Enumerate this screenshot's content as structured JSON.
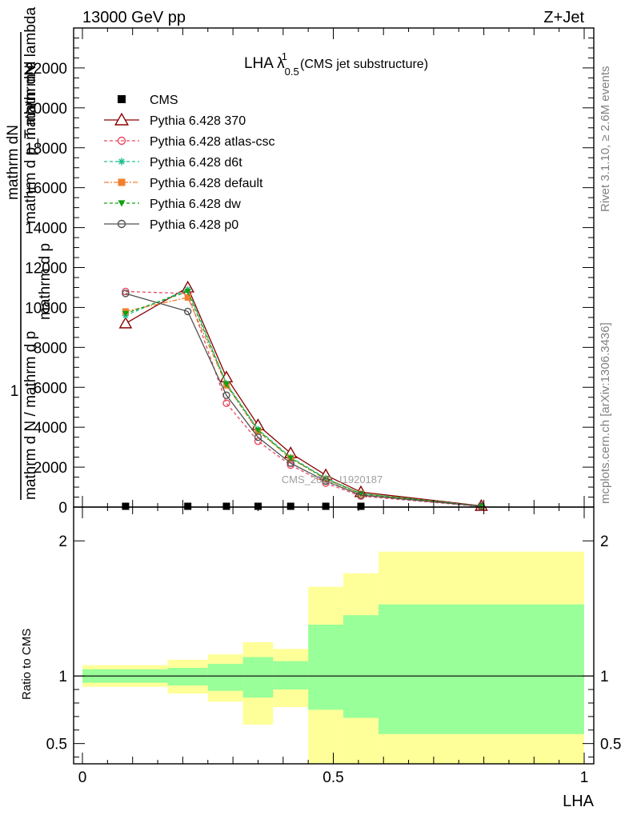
{
  "header": {
    "energy_label": "13000 GeV pp",
    "process_label": "Z+Jet"
  },
  "side_text": {
    "rivet": "Rivet 3.1.10, ≥ 2.6M events",
    "mcplots": "mcplots.cern.ch [arXiv:1306.3436]"
  },
  "watermark": "CMS_2021_I1920187",
  "chart_data": [
    {
      "type": "line",
      "title_main": "LHA λ",
      "title_sup": "1",
      "title_sub": "0.5",
      "title_rest": "(CMS jet substructure)",
      "ylabel_top": "1",
      "ylabel_lines": [
        "mathrm d N / mathrm d p",
        "mathrm d p",
        "mathrm dN"
      ],
      "ylabel_overlay_lines": [
        "mathrm dN",
        "mathrm d p_T mathrm d lambda"
      ],
      "ylim": [
        0,
        24000
      ],
      "yticks": [
        0,
        2000,
        4000,
        6000,
        8000,
        10000,
        12000,
        14000,
        16000,
        18000,
        20000,
        22000
      ],
      "ytick_labels": [
        "0",
        "2000",
        "4000",
        "6000",
        "8000",
        "10000",
        "12000",
        "14000",
        "16000",
        "18000",
        "20000",
        "22000"
      ],
      "x": [
        0.086,
        0.21,
        0.287,
        0.35,
        0.415,
        0.485,
        0.555,
        0.795
      ],
      "legend": [
        "CMS",
        "Pythia 6.428 370",
        "Pythia 6.428 atlas-csc",
        "Pythia 6.428 d6t",
        "Pythia 6.428 default",
        "Pythia 6.428 dw",
        "Pythia 6.428 p0"
      ],
      "series": [
        {
          "name": "CMS",
          "color": "#000000",
          "marker": "square",
          "values": [
            12,
            12,
            12,
            12,
            12,
            12,
            12,
            0
          ]
        },
        {
          "name": "Pythia 6.428 370",
          "color": "#8b0000",
          "marker": "triangle-open",
          "dash": "",
          "values": [
            9200,
            11000,
            6500,
            4100,
            2700,
            1600,
            750,
            60
          ]
        },
        {
          "name": "Pythia 6.428 atlas-csc",
          "color": "#e8485f",
          "marker": "circle-open",
          "dash": "4,3",
          "values": [
            10800,
            10700,
            5200,
            3300,
            2100,
            1200,
            550,
            30
          ]
        },
        {
          "name": "Pythia 6.428 d6t",
          "color": "#20c090",
          "marker": "star",
          "dash": "4,3",
          "values": [
            9600,
            10900,
            6200,
            3900,
            2500,
            1450,
            680,
            45
          ]
        },
        {
          "name": "Pythia 6.428 default",
          "color": "#f08030",
          "marker": "square",
          "dash": "6,2,2,2",
          "values": [
            9800,
            10500,
            6100,
            3800,
            2450,
            1400,
            660,
            45
          ]
        },
        {
          "name": "Pythia 6.428 dw",
          "color": "#10a010",
          "marker": "triangle-down",
          "dash": "4,3",
          "values": [
            9700,
            10800,
            6150,
            3850,
            2450,
            1420,
            670,
            45
          ]
        },
        {
          "name": "Pythia 6.428 p0",
          "color": "#505050",
          "marker": "circle-open",
          "dash": "",
          "values": [
            10700,
            9800,
            5600,
            3500,
            2200,
            1300,
            600,
            40
          ]
        }
      ]
    },
    {
      "type": "area",
      "ylabel": "Ratio to CMS",
      "xlabel": "LHA",
      "xlim": [
        0,
        1
      ],
      "ylim": [
        0.35,
        2.25
      ],
      "xticks": [
        0,
        0.5,
        1
      ],
      "xtick_labels": [
        "0",
        "0.5",
        "1"
      ],
      "yticks": [
        0.5,
        1,
        2
      ],
      "ytick_labels": [
        "0.5",
        "1",
        "2"
      ],
      "bin_edges": [
        0,
        0.17,
        0.25,
        0.32,
        0.38,
        0.45,
        0.52,
        0.59,
        1.0
      ],
      "band_outer": {
        "color": "#ffff99",
        "lower": [
          0.92,
          0.87,
          0.81,
          0.64,
          0.77,
          0.2,
          0.2,
          0.2
        ],
        "upper": [
          1.08,
          1.12,
          1.16,
          1.25,
          1.2,
          1.66,
          1.76,
          1.92
        ]
      },
      "band_inner": {
        "color": "#99ff99",
        "lower": [
          0.95,
          0.93,
          0.89,
          0.84,
          0.9,
          0.75,
          0.69,
          0.57
        ],
        "upper": [
          1.05,
          1.06,
          1.09,
          1.14,
          1.11,
          1.38,
          1.45,
          1.53
        ]
      },
      "reference_line": 1
    }
  ]
}
